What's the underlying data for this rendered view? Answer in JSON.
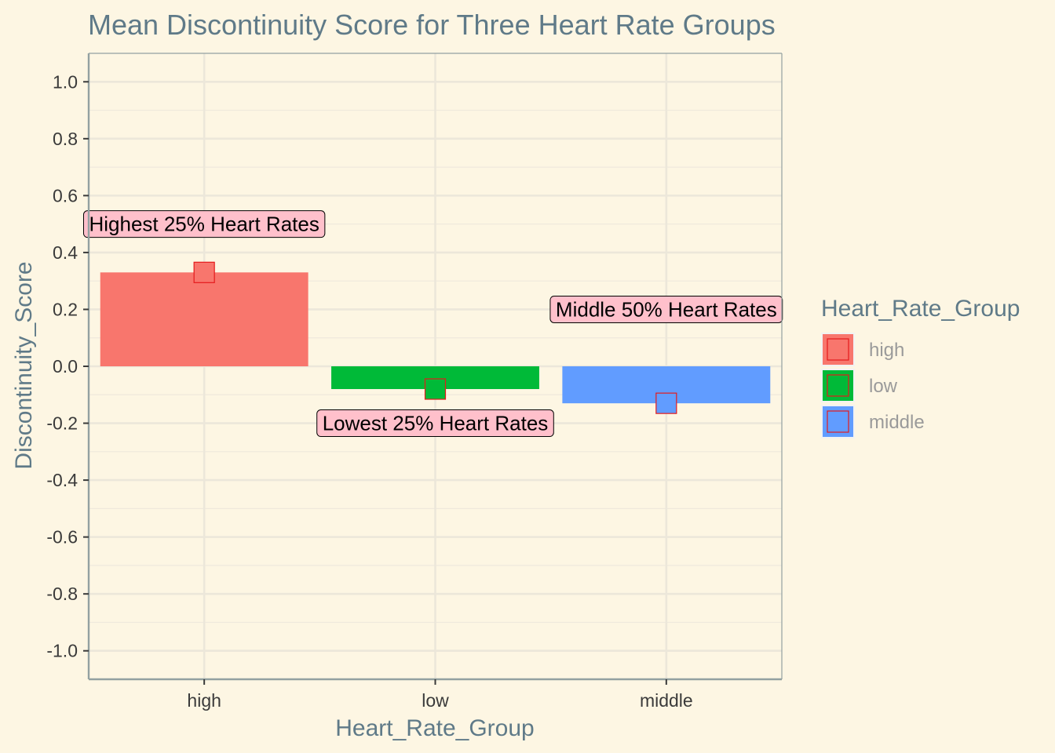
{
  "chart_data": {
    "type": "bar",
    "title": "Mean Discontinuity Score for Three Heart Rate Groups",
    "xlabel": "Heart_Rate_Group",
    "ylabel": "Discontinuity_Score",
    "categories": [
      "high",
      "low",
      "middle"
    ],
    "values": [
      0.33,
      -0.08,
      -0.13
    ],
    "ylim": [
      -1.1,
      1.1
    ],
    "yticks": [
      1.0,
      0.8,
      0.6,
      0.4,
      0.2,
      0.0,
      -0.2,
      -0.4,
      -0.6,
      -0.8,
      -1.0
    ],
    "ytick_labels": [
      "1.0",
      "0.8",
      "0.6",
      "0.4",
      "0.2",
      "0.0",
      "-0.2",
      "-0.4",
      "-0.6",
      "-0.8",
      "-1.0"
    ],
    "colors": [
      "#F8766D",
      "#00BA38",
      "#619CFF"
    ],
    "point_color": "#E41A1C",
    "grid": true,
    "legend": {
      "title": "Heart_Rate_Group",
      "placement": "right",
      "entries": [
        "high",
        "low",
        "middle"
      ]
    },
    "annotations": [
      {
        "category": "high",
        "y": 0.5,
        "text": "Highest 25% Heart Rates"
      },
      {
        "category": "low",
        "y": -0.2,
        "text": "Lowest 25% Heart Rates"
      },
      {
        "category": "middle",
        "y": 0.2,
        "text": "Middle 50% Heart Rates"
      }
    ],
    "annotation_fill": "#FFC0CB"
  }
}
